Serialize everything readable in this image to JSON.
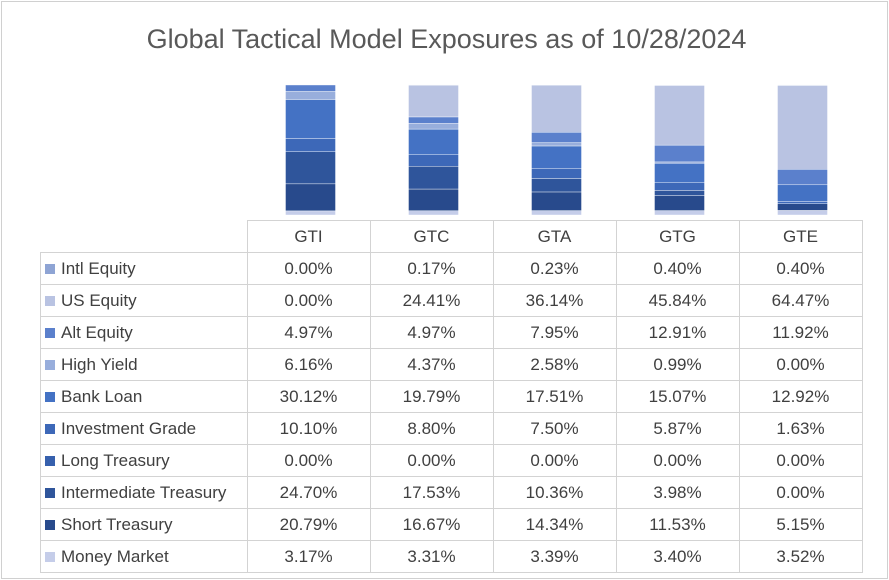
{
  "chart_data": {
    "type": "bar",
    "stacked": true,
    "title": "Global Tactical Model Exposures as of 10/28/2024",
    "categories": [
      "GTI",
      "GTC",
      "GTA",
      "GTG",
      "GTE"
    ],
    "legend_placement": "data-table-left",
    "series": [
      {
        "name": "Intl Equity",
        "color": "#8ea4d4",
        "display": [
          "0.00%",
          "0.17%",
          "0.23%",
          "0.40%",
          "0.40%"
        ],
        "values": [
          0.0,
          0.17,
          0.23,
          0.4,
          0.4
        ]
      },
      {
        "name": "US Equity",
        "color": "#b9c3e2",
        "display": [
          "0.00%",
          "24.41%",
          "36.14%",
          "45.84%",
          "64.47%"
        ],
        "values": [
          0.0,
          24.41,
          36.14,
          45.84,
          64.47
        ]
      },
      {
        "name": "Alt Equity",
        "color": "#5b80cc",
        "display": [
          "4.97%",
          "4.97%",
          "7.95%",
          "12.91%",
          "11.92%"
        ],
        "values": [
          4.97,
          4.97,
          7.95,
          12.91,
          11.92
        ]
      },
      {
        "name": "High Yield",
        "color": "#98aedc",
        "display": [
          "6.16%",
          "4.37%",
          "2.58%",
          "0.99%",
          "0.00%"
        ],
        "values": [
          6.16,
          4.37,
          2.58,
          0.99,
          0.0
        ]
      },
      {
        "name": "Bank Loan",
        "color": "#4472c4",
        "display": [
          "30.12%",
          "19.79%",
          "17.51%",
          "15.07%",
          "12.92%"
        ],
        "values": [
          30.12,
          19.79,
          17.51,
          15.07,
          12.92
        ]
      },
      {
        "name": "Investment Grade",
        "color": "#3d68b8",
        "display": [
          "10.10%",
          "8.80%",
          "7.50%",
          "5.87%",
          "1.63%"
        ],
        "values": [
          10.1,
          8.8,
          7.5,
          5.87,
          1.63
        ]
      },
      {
        "name": "Long Treasury",
        "color": "#3660ad",
        "display": [
          "0.00%",
          "0.00%",
          "0.00%",
          "0.00%",
          "0.00%"
        ],
        "values": [
          0.0,
          0.0,
          0.0,
          0.0,
          0.0
        ]
      },
      {
        "name": "Intermediate Treasury",
        "color": "#2f559b",
        "display": [
          "24.70%",
          "17.53%",
          "10.36%",
          "3.98%",
          "0.00%"
        ],
        "values": [
          24.7,
          17.53,
          10.36,
          3.98,
          0.0
        ]
      },
      {
        "name": "Short Treasury",
        "color": "#284a8c",
        "display": [
          "20.79%",
          "16.67%",
          "14.34%",
          "11.53%",
          "5.15%"
        ],
        "values": [
          20.79,
          16.67,
          14.34,
          11.53,
          5.15
        ]
      },
      {
        "name": "Money Market",
        "color": "#c5cde9",
        "display": [
          "3.17%",
          "3.31%",
          "3.39%",
          "3.40%",
          "3.52%"
        ],
        "values": [
          3.17,
          3.31,
          3.39,
          3.4,
          3.52
        ]
      }
    ],
    "ylim": [
      0,
      100
    ]
  }
}
